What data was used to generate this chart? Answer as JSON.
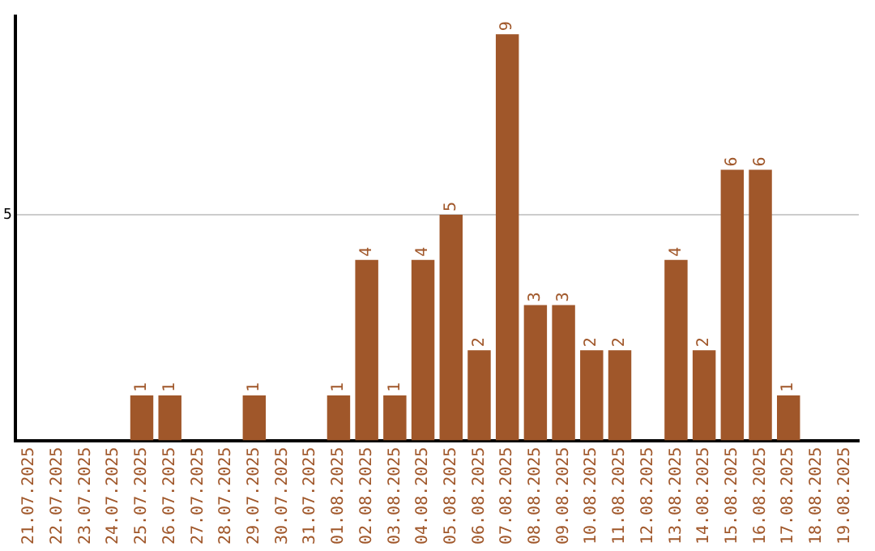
{
  "chart_data": {
    "type": "bar",
    "categories": [
      "21.07.2025",
      "22.07.2025",
      "23.07.2025",
      "24.07.2025",
      "25.07.2025",
      "26.07.2025",
      "27.07.2025",
      "28.07.2025",
      "29.07.2025",
      "30.07.2025",
      "31.07.2025",
      "01.08.2025",
      "02.08.2025",
      "03.08.2025",
      "04.08.2025",
      "05.08.2025",
      "06.08.2025",
      "07.08.2025",
      "08.08.2025",
      "09.08.2025",
      "10.08.2025",
      "11.08.2025",
      "12.08.2025",
      "13.08.2025",
      "14.08.2025",
      "15.08.2025",
      "16.08.2025",
      "17.08.2025",
      "18.08.2025",
      "19.08.2025"
    ],
    "values": [
      0,
      0,
      0,
      0,
      1,
      1,
      0,
      0,
      1,
      0,
      0,
      1,
      4,
      1,
      4,
      5,
      2,
      9,
      3,
      3,
      2,
      2,
      0,
      4,
      2,
      6,
      6,
      1,
      0,
      0
    ],
    "value_labels": [
      null,
      null,
      null,
      null,
      "1",
      "1",
      null,
      null,
      "1",
      null,
      null,
      "1",
      "4",
      "1",
      "4",
      "5",
      "2",
      "9",
      "3",
      "3",
      "2",
      "2",
      null,
      "4",
      "2",
      "6",
      "6",
      "1",
      null,
      null
    ],
    "color": "#a0572a",
    "ylim": [
      0,
      9.4
    ],
    "yticks": [
      5
    ],
    "grid": "y",
    "legend": false
  }
}
